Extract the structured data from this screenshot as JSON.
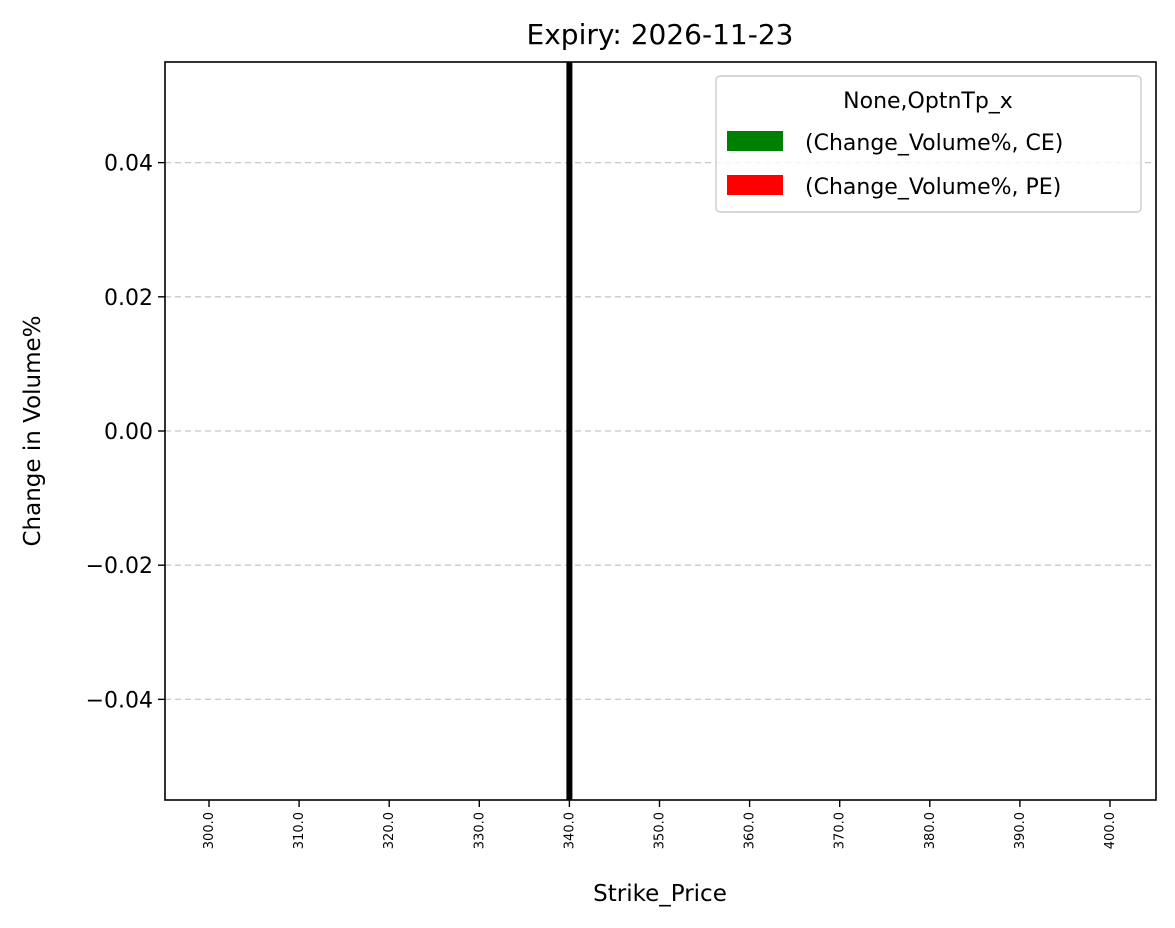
{
  "chart_data": {
    "type": "bar",
    "title": "Expiry: 2026-11-23",
    "xlabel": "Strike_Price",
    "ylabel": "Change in Volume%",
    "categories": [
      "300.0",
      "310.0",
      "320.0",
      "330.0",
      "340.0",
      "350.0",
      "360.0",
      "370.0",
      "380.0",
      "390.0",
      "400.0"
    ],
    "series": [
      {
        "name": "(Change_Volume%, CE)",
        "color": "#008000",
        "values": [
          0,
          0,
          0,
          0,
          0,
          0,
          0,
          0,
          0,
          0,
          0
        ]
      },
      {
        "name": "(Change_Volume%, PE)",
        "color": "#ff0000",
        "values": [
          0,
          0,
          0,
          0,
          0,
          0,
          0,
          0,
          0,
          0,
          0
        ]
      }
    ],
    "yticks": [
      0.04,
      0.02,
      0.0,
      -0.02,
      -0.04
    ],
    "ytick_labels": [
      "0.04",
      "0.02",
      "0.00",
      "−0.02",
      "−0.04"
    ],
    "ylim": [
      -0.055,
      0.055
    ],
    "reference_line": {
      "x": "340.0",
      "color": "#000000"
    },
    "legend": {
      "title": "None,OptnTp_x",
      "placement": "top-right"
    },
    "grid": {
      "y": true,
      "style": "dashed"
    }
  }
}
